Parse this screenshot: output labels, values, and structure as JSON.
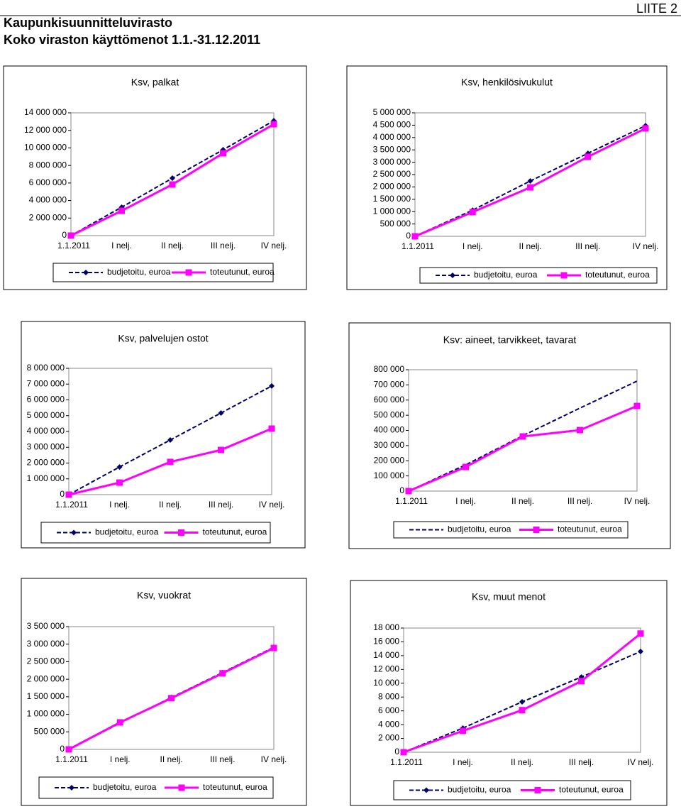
{
  "header": {
    "title": "Kaupunkisuunnitteluvirasto",
    "subtitle": "Koko viraston käyttömenot 1.1.-31.12.2011",
    "appendix": "LIITE 2"
  },
  "chart_data": [
    {
      "type": "line",
      "title": "Ksv, palkat",
      "categories": [
        "1.1.2011",
        "I nelj.",
        "II nelj.",
        "III nelj.",
        "IV nelj."
      ],
      "series": [
        {
          "name": "budjetoitu, euroa",
          "color": "#000066",
          "line_style": "dashed",
          "marker": "diamond",
          "values": [
            0,
            3240000,
            6550000,
            9790000,
            13100000
          ]
        },
        {
          "name": "toteutunut, euroa",
          "color": "#ff00ff",
          "line_style": "solid",
          "marker": "square",
          "values": [
            0,
            2830000,
            5830000,
            9390000,
            12700000
          ]
        }
      ],
      "ylim": [
        0,
        14000000
      ],
      "yticks": [
        0,
        {
          "value": 2000000,
          "label": "2 000 000"
        },
        {
          "value": 4000000,
          "label": "4 000 000"
        },
        {
          "value": 6000000,
          "label": "6 000 000"
        },
        {
          "value": 8000000,
          "label": "8 000 000"
        },
        {
          "value": 10000000,
          "label": "10 000 000"
        },
        {
          "value": 12000000,
          "label": "12 000 000"
        },
        {
          "value": 14000000,
          "label": "14 000 000"
        }
      ],
      "grid": false
    },
    {
      "type": "line",
      "title": "Ksv, henkilösivukulut",
      "categories": [
        "1.1.2011",
        "I nelj.",
        "II nelj.",
        "III nelj.",
        "IV nelj."
      ],
      "series": [
        {
          "name": "budjetoitu, euroa",
          "color": "#000066",
          "line_style": "dashed",
          "marker": "diamond",
          "values": [
            0,
            1060000,
            2240000,
            3360000,
            4480000
          ]
        },
        {
          "name": "toteutunut, euroa",
          "color": "#ff00ff",
          "line_style": "solid",
          "marker": "square",
          "values": [
            0,
            980000,
            1980000,
            3220000,
            4370000
          ]
        }
      ],
      "ylim": [
        0,
        5000000
      ],
      "yticks": [
        0,
        {
          "value": 500000,
          "label": "500 000"
        },
        {
          "value": 1000000,
          "label": "1 000 000"
        },
        {
          "value": 1500000,
          "label": "1 500 000"
        },
        {
          "value": 2000000,
          "label": "2 000 000"
        },
        {
          "value": 2500000,
          "label": "2 500 000"
        },
        {
          "value": 3000000,
          "label": "3 000 000"
        },
        {
          "value": 3500000,
          "label": "3 500 000"
        },
        {
          "value": 4000000,
          "label": "4 000 000"
        },
        {
          "value": 4500000,
          "label": "4 500 000"
        },
        {
          "value": 5000000,
          "label": "5 000 000"
        }
      ],
      "grid": false
    },
    {
      "type": "line",
      "title": "Ksv, palvelujen ostot",
      "categories": [
        "1.1.2011",
        "I nelj.",
        "II nelj.",
        "III nelj.",
        "IV nelj."
      ],
      "series": [
        {
          "name": "budjetoitu, euroa",
          "color": "#000066",
          "line_style": "dashed",
          "marker": "diamond",
          "values": [
            0,
            1750000,
            3460000,
            5170000,
            6880000
          ]
        },
        {
          "name": "toteutunut, euroa",
          "color": "#ff00ff",
          "line_style": "solid",
          "marker": "square",
          "values": [
            0,
            760000,
            2070000,
            2830000,
            4180000
          ]
        }
      ],
      "ylim": [
        0,
        8000000
      ],
      "yticks": [
        0,
        {
          "value": 1000000,
          "label": "1 000 000"
        },
        {
          "value": 2000000,
          "label": "2 000 000"
        },
        {
          "value": 3000000,
          "label": "3 000 000"
        },
        {
          "value": 4000000,
          "label": "4 000 000"
        },
        {
          "value": 5000000,
          "label": "5 000 000"
        },
        {
          "value": 6000000,
          "label": "6 000 000"
        },
        {
          "value": 7000000,
          "label": "7 000 000"
        },
        {
          "value": 8000000,
          "label": "8 000 000"
        }
      ],
      "grid": false
    },
    {
      "type": "line",
      "title": "Ksv: aineet, tarvikkeet, tavarat",
      "categories": [
        "1.1.2011",
        "I nelj.",
        "II nelj.",
        "III nelj.",
        "IV nelj."
      ],
      "series": [
        {
          "name": "budjetoitu, euroa",
          "color": "#000066",
          "line_style": "dashed",
          "marker": "none",
          "values": [
            0,
            173000,
            365000,
            547000,
            725000
          ]
        },
        {
          "name": "toteutunut, euroa",
          "color": "#ff00ff",
          "line_style": "solid",
          "marker": "square",
          "values": [
            0,
            159000,
            360000,
            402000,
            561000
          ]
        }
      ],
      "ylim": [
        0,
        800000
      ],
      "yticks": [
        0,
        {
          "value": 100000,
          "label": "100 000"
        },
        {
          "value": 200000,
          "label": "200 000"
        },
        {
          "value": 300000,
          "label": "300 000"
        },
        {
          "value": 400000,
          "label": "400 000"
        },
        {
          "value": 500000,
          "label": "500 000"
        },
        {
          "value": 600000,
          "label": "600 000"
        },
        {
          "value": 700000,
          "label": "700 000"
        },
        {
          "value": 800000,
          "label": "800 000"
        }
      ],
      "grid": false
    },
    {
      "type": "line",
      "title": "Ksv, vuokrat",
      "categories": [
        "1.1.2011",
        "I nelj.",
        "II nelj.",
        "III nelj.",
        "IV nelj."
      ],
      "series": [
        {
          "name": "budjetoitu, euroa",
          "color": "#000066",
          "line_style": "dashed",
          "marker": "diamond",
          "values": [
            0,
            750000,
            1480000,
            2190000,
            2910000
          ]
        },
        {
          "name": "toteutunut, euroa",
          "color": "#ff00ff",
          "line_style": "solid",
          "marker": "square",
          "values": [
            0,
            770000,
            1460000,
            2170000,
            2890000
          ]
        }
      ],
      "ylim": [
        0,
        3500000
      ],
      "yticks": [
        0,
        {
          "value": 500000,
          "label": "500 000"
        },
        {
          "value": 1000000,
          "label": "1 000 000"
        },
        {
          "value": 1500000,
          "label": "1 500 000"
        },
        {
          "value": 2000000,
          "label": "2 000 000"
        },
        {
          "value": 2500000,
          "label": "2 500 000"
        },
        {
          "value": 3000000,
          "label": "3 000 000"
        },
        {
          "value": 3500000,
          "label": "3 500 000"
        }
      ],
      "grid": false
    },
    {
      "type": "line",
      "title": "Ksv, muut menot",
      "categories": [
        "1.1.2011",
        "I nelj.",
        "II nelj.",
        "III nelj.",
        "IV nelj."
      ],
      "series": [
        {
          "name": "budjetoitu, euroa",
          "color": "#000066",
          "line_style": "dashed",
          "marker": "diamond",
          "values": [
            0,
            3500,
            7300,
            10900,
            14600
          ]
        },
        {
          "name": "toteutunut, euroa",
          "color": "#ff00ff",
          "line_style": "solid",
          "marker": "square",
          "values": [
            0,
            3100,
            6100,
            10300,
            17200
          ]
        }
      ],
      "ylim": [
        0,
        18000
      ],
      "yticks": [
        0,
        {
          "value": 2000,
          "label": "2 000"
        },
        {
          "value": 4000,
          "label": "4 000"
        },
        {
          "value": 6000,
          "label": "6 000"
        },
        {
          "value": 8000,
          "label": "8 000"
        },
        {
          "value": 10000,
          "label": "10 000"
        },
        {
          "value": 12000,
          "label": "12 000"
        },
        {
          "value": 14000,
          "label": "14 000"
        },
        {
          "value": 16000,
          "label": "16 000"
        },
        {
          "value": 18000,
          "label": "18 000"
        }
      ],
      "grid": false
    }
  ]
}
